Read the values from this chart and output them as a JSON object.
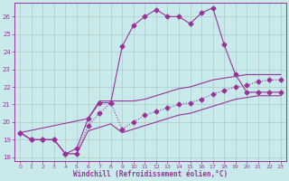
{
  "bg_color": "#c8eaea",
  "grid_color": "#b0c8c8",
  "line_color": "#993399",
  "xlabel": "Windchill (Refroidissement éolien,°C)",
  "xlim": [
    -0.5,
    23.5
  ],
  "ylim": [
    17.8,
    26.8
  ],
  "yticks": [
    18,
    19,
    20,
    21,
    22,
    23,
    24,
    25,
    26
  ],
  "xticks": [
    0,
    1,
    2,
    3,
    4,
    5,
    6,
    7,
    8,
    9,
    10,
    11,
    12,
    13,
    14,
    15,
    16,
    17,
    18,
    19,
    20,
    21,
    22,
    23
  ],
  "line1_x": [
    0,
    1,
    2,
    3,
    4,
    5,
    6,
    7,
    8,
    9,
    10,
    11,
    12,
    13,
    14,
    15,
    16,
    17,
    18,
    19,
    20,
    21,
    22,
    23
  ],
  "line1_y": [
    19.4,
    19.0,
    19.0,
    19.0,
    18.2,
    18.5,
    20.2,
    21.1,
    21.1,
    24.3,
    25.5,
    26.0,
    26.4,
    26.0,
    26.0,
    25.6,
    26.2,
    26.5,
    24.4,
    22.7,
    21.7,
    21.7,
    21.7,
    21.7
  ],
  "line1_style": "-",
  "line1_marker": "D",
  "line2_x": [
    0,
    1,
    2,
    3,
    4,
    5,
    6,
    7,
    8,
    9,
    10,
    11,
    12,
    13,
    14,
    15,
    16,
    17,
    18,
    19,
    20,
    21,
    22,
    23
  ],
  "line2_y": [
    19.4,
    19.0,
    19.0,
    19.0,
    18.2,
    18.2,
    19.8,
    20.5,
    21.1,
    19.6,
    20.0,
    20.4,
    20.6,
    20.8,
    21.0,
    21.1,
    21.3,
    21.6,
    21.8,
    22.0,
    22.1,
    22.3,
    22.4,
    22.4
  ],
  "line2_style": ":",
  "line2_marker": "D",
  "line3_x": [
    0,
    1,
    2,
    3,
    4,
    5,
    6,
    7,
    8,
    9,
    10,
    11,
    12,
    13,
    14,
    15,
    16,
    17,
    18,
    19,
    20,
    21,
    22,
    23
  ],
  "line3_y": [
    19.4,
    19.0,
    19.0,
    19.0,
    18.2,
    18.2,
    19.5,
    19.7,
    19.9,
    19.4,
    19.6,
    19.8,
    20.0,
    20.2,
    20.4,
    20.5,
    20.7,
    20.9,
    21.1,
    21.3,
    21.4,
    21.5,
    21.5,
    21.5
  ],
  "line3_style": "-",
  "line3_marker": null,
  "line4_x": [
    0,
    6,
    7,
    8,
    9,
    10,
    11,
    12,
    13,
    14,
    15,
    16,
    17,
    18,
    19,
    20,
    21,
    22,
    23
  ],
  "line4_y": [
    19.4,
    20.2,
    21.2,
    21.2,
    21.2,
    21.2,
    21.3,
    21.5,
    21.7,
    21.9,
    22.0,
    22.2,
    22.4,
    22.5,
    22.6,
    22.7,
    22.7,
    22.7,
    22.7
  ],
  "line4_style": "-",
  "line4_marker": null
}
